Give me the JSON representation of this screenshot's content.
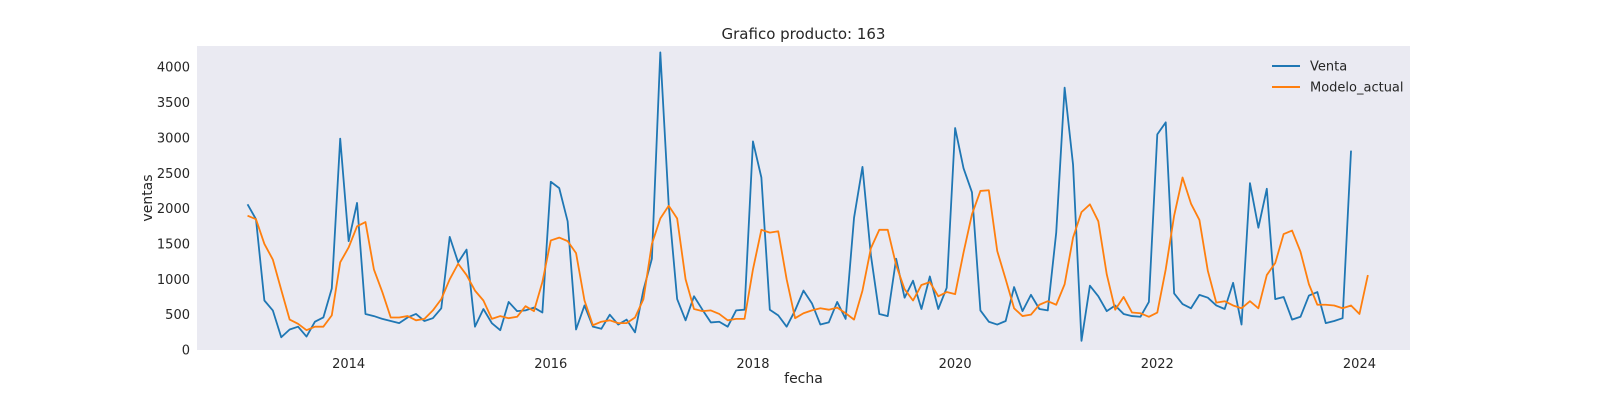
{
  "chart_data": {
    "type": "line",
    "title": "Grafico producto: 163",
    "xlabel": "fecha",
    "ylabel": "ventas",
    "x_start": "2013-01",
    "x_step": "month",
    "xlim": [
      "2012-07",
      "2024-07"
    ],
    "ylim": [
      0,
      4300
    ],
    "xticks": [
      "2014",
      "2016",
      "2018",
      "2020",
      "2022",
      "2024"
    ],
    "yticks": [
      0,
      500,
      1000,
      1500,
      2000,
      2500,
      3000,
      3500,
      4000
    ],
    "grid": false,
    "legend_position": "top-right",
    "background": "#eaeaf2",
    "series": [
      {
        "name": "Venta",
        "color": "#1f77b4",
        "values": [
          2060,
          1850,
          700,
          560,
          180,
          290,
          330,
          190,
          400,
          460,
          870,
          2990,
          1540,
          2080,
          510,
          480,
          440,
          410,
          380,
          460,
          510,
          410,
          450,
          590,
          1600,
          1240,
          1420,
          330,
          580,
          380,
          280,
          680,
          550,
          560,
          600,
          530,
          2380,
          2290,
          1820,
          290,
          630,
          330,
          300,
          500,
          360,
          430,
          250,
          850,
          1290,
          4210,
          2050,
          720,
          420,
          760,
          570,
          390,
          400,
          330,
          560,
          570,
          2950,
          2440,
          570,
          490,
          330,
          560,
          840,
          660,
          360,
          390,
          680,
          440,
          1870,
          2590,
          1340,
          510,
          480,
          1290,
          740,
          980,
          580,
          1040,
          580,
          880,
          3140,
          2570,
          2230,
          560,
          400,
          360,
          410,
          890,
          550,
          780,
          580,
          560,
          1660,
          3710,
          2620,
          130,
          910,
          760,
          550,
          630,
          510,
          480,
          470,
          680,
          3050,
          3220,
          800,
          650,
          590,
          780,
          740,
          630,
          580,
          950,
          360,
          2360,
          1730,
          2280,
          720,
          750,
          430,
          470,
          770,
          820,
          380,
          410,
          450,
          2820
        ]
      },
      {
        "name": "Modelo_actual",
        "color": "#ff7f0e",
        "values": [
          1900,
          1850,
          1500,
          1280,
          850,
          430,
          370,
          280,
          330,
          330,
          490,
          1240,
          1450,
          1750,
          1810,
          1140,
          820,
          460,
          460,
          480,
          420,
          440,
          560,
          720,
          1000,
          1220,
          1060,
          840,
          700,
          440,
          480,
          450,
          470,
          620,
          550,
          960,
          1550,
          1590,
          1540,
          1370,
          700,
          350,
          400,
          420,
          380,
          380,
          460,
          720,
          1500,
          1860,
          2040,
          1860,
          1000,
          580,
          550,
          560,
          510,
          420,
          440,
          440,
          1140,
          1700,
          1660,
          1680,
          1000,
          450,
          520,
          560,
          590,
          570,
          600,
          520,
          430,
          840,
          1440,
          1700,
          1700,
          1200,
          860,
          700,
          920,
          960,
          760,
          820,
          790,
          1380,
          1920,
          2250,
          2260,
          1400,
          1000,
          590,
          480,
          500,
          640,
          690,
          640,
          930,
          1590,
          1950,
          2060,
          1820,
          1070,
          570,
          750,
          530,
          520,
          470,
          530,
          1140,
          1900,
          2440,
          2070,
          1840,
          1120,
          670,
          690,
          630,
          590,
          690,
          590,
          1060,
          1230,
          1640,
          1690,
          1390,
          930,
          640,
          640,
          630,
          590,
          630,
          510,
          1060
        ]
      }
    ]
  }
}
